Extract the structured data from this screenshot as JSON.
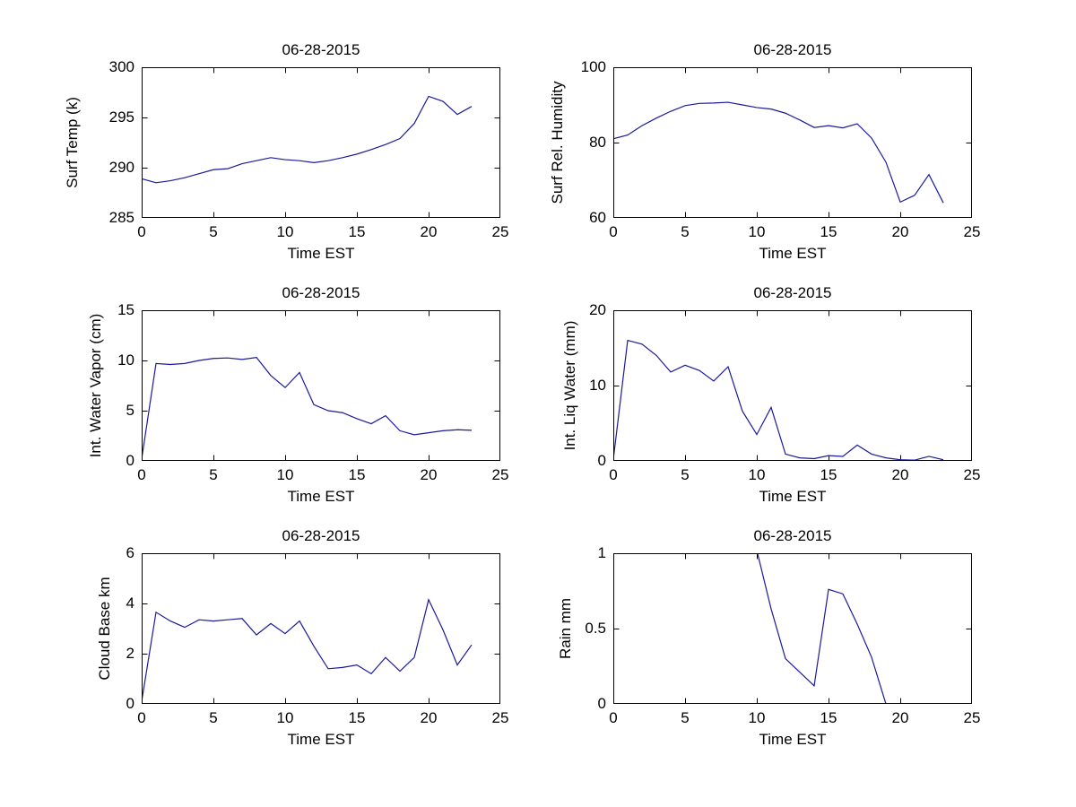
{
  "figure": {
    "background": "#ffffff",
    "axis_color": "#000000",
    "line_color": "#1a1a9c",
    "date": "06-28-2015"
  },
  "chart_data": [
    {
      "type": "line",
      "title": "06-28-2015",
      "xlabel": "Time EST",
      "ylabel": "Surf Temp (k)",
      "xlim": [
        0,
        25
      ],
      "ylim": [
        285,
        300
      ],
      "xticks": [
        0,
        5,
        10,
        15,
        20,
        25
      ],
      "xtick_labels": [
        "0",
        "5",
        "10",
        "15",
        "20",
        "25"
      ],
      "yticks": [
        285,
        290,
        295,
        300
      ],
      "ytick_labels": [
        "285",
        "290",
        "295",
        "300"
      ],
      "grid": false,
      "legend": null,
      "x": [
        0,
        1,
        2,
        3,
        4,
        5,
        6,
        7,
        8,
        9,
        10,
        11,
        12,
        13,
        14,
        15,
        16,
        17,
        18,
        19,
        20,
        21,
        22,
        23
      ],
      "values": [
        288.9,
        288.5,
        288.7,
        289.0,
        289.4,
        289.8,
        289.9,
        290.4,
        290.7,
        291.0,
        290.8,
        290.7,
        290.5,
        290.7,
        291.0,
        291.35,
        291.8,
        292.3,
        292.9,
        294.4,
        297.1,
        296.6,
        295.3,
        296.1
      ]
    },
    {
      "type": "line",
      "title": "06-28-2015",
      "xlabel": "Time EST",
      "ylabel": "Surf Rel. Humidity",
      "xlim": [
        0,
        25
      ],
      "ylim": [
        60,
        100
      ],
      "xticks": [
        0,
        5,
        10,
        15,
        20,
        25
      ],
      "xtick_labels": [
        "0",
        "5",
        "10",
        "15",
        "20",
        "25"
      ],
      "yticks": [
        60,
        80,
        100
      ],
      "ytick_labels": [
        "60",
        "80",
        "100"
      ],
      "grid": false,
      "legend": null,
      "x": [
        0,
        1,
        2,
        3,
        4,
        5,
        6,
        7,
        8,
        9,
        10,
        11,
        12,
        13,
        14,
        15,
        16,
        17,
        18,
        19,
        20,
        21,
        22,
        23
      ],
      "values": [
        81,
        82,
        84.5,
        86.5,
        88.3,
        89.8,
        90.4,
        90.5,
        90.7,
        90.0,
        89.3,
        88.9,
        87.8,
        86.0,
        84.0,
        84.5,
        83.9,
        85.0,
        81.2,
        74.8,
        64.2,
        66.0,
        71.5,
        64.0
      ]
    },
    {
      "type": "line",
      "title": "06-28-2015",
      "xlabel": "Time EST",
      "ylabel": "Int. Water Vapor (cm)",
      "xlim": [
        0,
        25
      ],
      "ylim": [
        0,
        15
      ],
      "xticks": [
        0,
        5,
        10,
        15,
        20,
        25
      ],
      "xtick_labels": [
        "0",
        "5",
        "10",
        "15",
        "20",
        "25"
      ],
      "yticks": [
        0,
        5,
        10,
        15
      ],
      "ytick_labels": [
        "0",
        "5",
        "10",
        "15"
      ],
      "grid": false,
      "legend": null,
      "x": [
        0,
        1,
        2,
        3,
        4,
        5,
        6,
        7,
        8,
        9,
        10,
        11,
        12,
        13,
        14,
        15,
        16,
        17,
        18,
        19,
        20,
        21,
        22,
        23
      ],
      "values": [
        0.2,
        9.7,
        9.6,
        9.7,
        10.0,
        10.2,
        10.25,
        10.1,
        10.3,
        8.5,
        7.3,
        8.8,
        5.6,
        5.0,
        4.8,
        4.2,
        3.7,
        4.5,
        3.0,
        2.6,
        2.8,
        3.0,
        3.1,
        3.05
      ]
    },
    {
      "type": "line",
      "title": "06-28-2015",
      "xlabel": "Time EST",
      "ylabel": "Int. Liq Water (mm)",
      "xlim": [
        0,
        25
      ],
      "ylim": [
        0,
        20
      ],
      "xticks": [
        0,
        5,
        10,
        15,
        20,
        25
      ],
      "xtick_labels": [
        "0",
        "5",
        "10",
        "15",
        "20",
        "25"
      ],
      "yticks": [
        0,
        10,
        20
      ],
      "ytick_labels": [
        "0",
        "10",
        "20"
      ],
      "grid": false,
      "legend": null,
      "x": [
        0,
        1,
        2,
        3,
        4,
        5,
        6,
        7,
        8,
        9,
        10,
        11,
        12,
        13,
        14,
        15,
        16,
        17,
        18,
        19,
        20,
        21,
        22,
        23
      ],
      "values": [
        0.2,
        16.0,
        15.5,
        14.0,
        11.8,
        12.7,
        12.0,
        10.6,
        12.5,
        6.6,
        3.5,
        7.1,
        0.9,
        0.4,
        0.3,
        0.7,
        0.6,
        2.1,
        0.9,
        0.4,
        0.15,
        0.1,
        0.6,
        0.15
      ]
    },
    {
      "type": "line",
      "title": "06-28-2015",
      "xlabel": "Time EST",
      "ylabel": "Cloud Base km",
      "xlim": [
        0,
        25
      ],
      "ylim": [
        0,
        6
      ],
      "xticks": [
        0,
        5,
        10,
        15,
        20,
        25
      ],
      "xtick_labels": [
        "0",
        "5",
        "10",
        "15",
        "20",
        "25"
      ],
      "yticks": [
        0,
        2,
        4,
        6
      ],
      "ytick_labels": [
        "0",
        "2",
        "4",
        "6"
      ],
      "grid": false,
      "legend": null,
      "x": [
        0,
        1,
        2,
        3,
        4,
        5,
        6,
        7,
        8,
        9,
        10,
        11,
        12,
        13,
        14,
        15,
        16,
        17,
        18,
        19,
        20,
        21,
        22,
        23
      ],
      "values": [
        0.1,
        3.65,
        3.3,
        3.05,
        3.35,
        3.3,
        3.35,
        3.4,
        2.75,
        3.2,
        2.8,
        3.3,
        2.3,
        1.4,
        1.45,
        1.55,
        1.2,
        1.85,
        1.3,
        1.85,
        4.15,
        2.95,
        1.55,
        2.35
      ]
    },
    {
      "type": "line",
      "title": "06-28-2015",
      "xlabel": "Time EST",
      "ylabel": "Rain mm",
      "xlim": [
        0,
        25
      ],
      "ylim": [
        0,
        1
      ],
      "xticks": [
        0,
        5,
        10,
        15,
        20,
        25
      ],
      "xtick_labels": [
        "0",
        "5",
        "10",
        "15",
        "20",
        "25"
      ],
      "yticks": [
        0,
        0.5,
        1
      ],
      "ytick_labels": [
        "0",
        "0.5",
        "1"
      ],
      "grid": false,
      "legend": null,
      "x": [
        10,
        11,
        12,
        13,
        14,
        15,
        16,
        17,
        18,
        19
      ],
      "values": [
        1.02,
        0.63,
        0.3,
        0.21,
        0.12,
        0.76,
        0.73,
        0.53,
        0.31,
        0.0
      ]
    }
  ]
}
